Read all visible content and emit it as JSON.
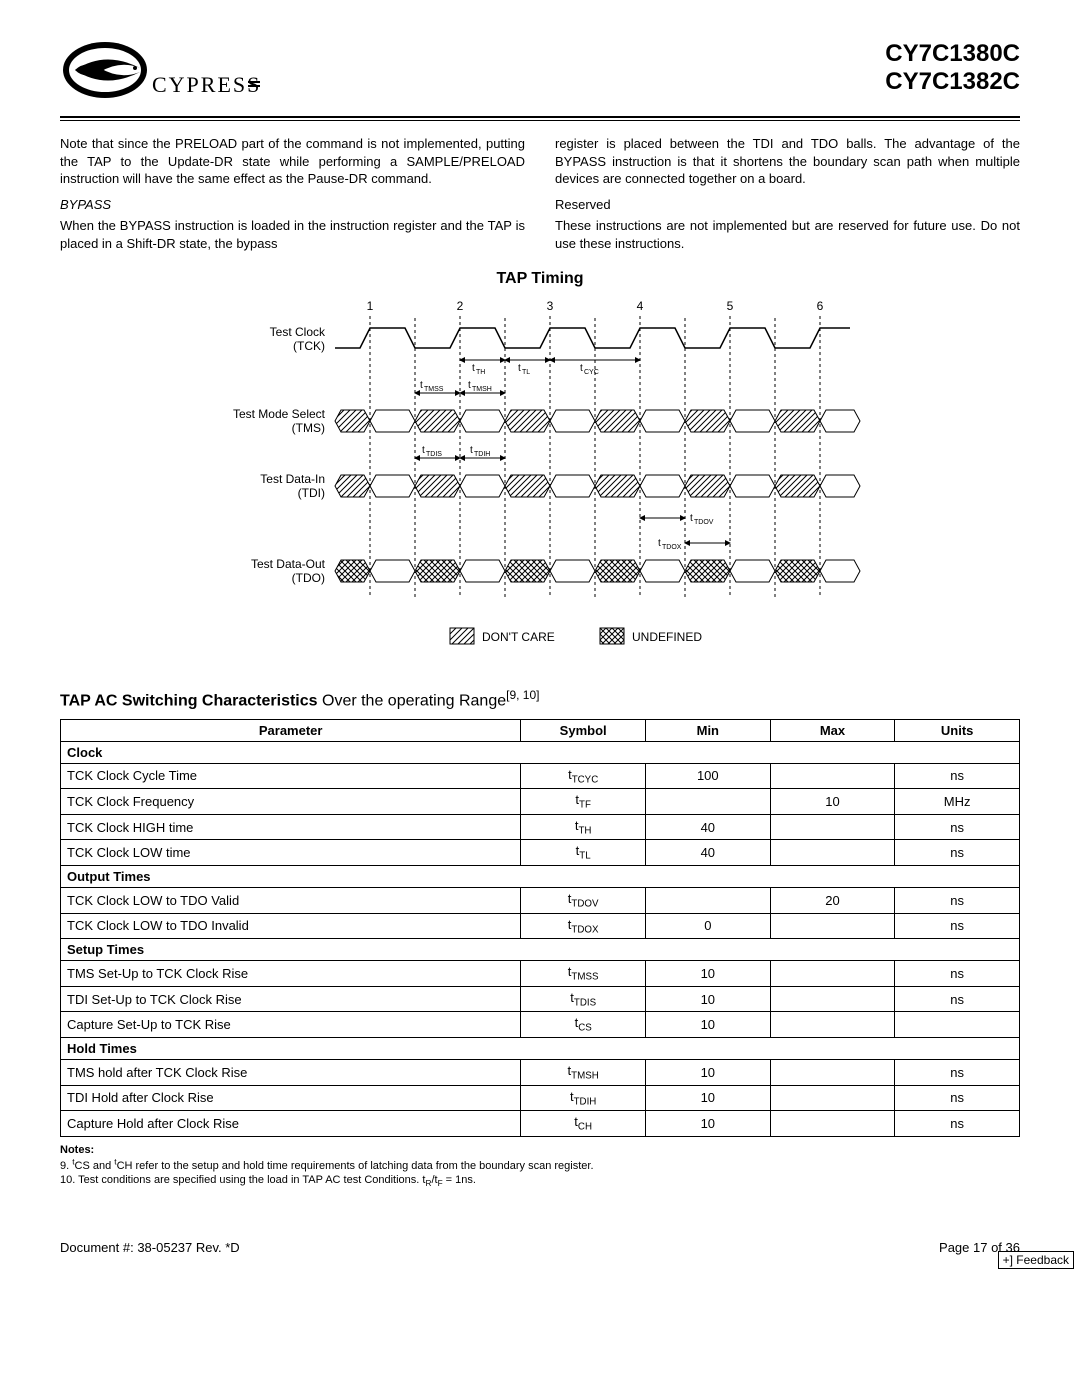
{
  "header": {
    "part1": "CY7C1380C",
    "part2": "CY7C1382C",
    "logo_text": "CYPRESS"
  },
  "body": {
    "left_p1": "Note that since the PRELOAD part of the command is not implemented, putting the TAP to the Update-DR state while performing a SAMPLE/PRELOAD instruction will have the same effect as the Pause-DR command.",
    "bypass_h": "BYPASS",
    "left_p2": "When the BYPASS instruction is loaded in the instruction register and the TAP is placed in a Shift-DR state, the bypass",
    "right_p1": "register is placed between the TDI and TDO balls. The advantage of the BYPASS instruction is that it shortens the boundary scan path when multiple devices are connected together on a board.",
    "reserved_h": "Reserved",
    "right_p2": "These instructions are not implemented but are reserved for future use. Do not use these instructions."
  },
  "timing": {
    "title": "TAP Timing",
    "signals": {
      "tck": "Test Clock\n(TCK)",
      "tms": "Test Mode Select\n(TMS)",
      "tdi": "Test Data-In\n(TDI)",
      "tdo": "Test Data-Out\n(TDO)"
    },
    "labels": {
      "th": "TH",
      "tl": "TL",
      "tcyc": "CYC",
      "tmss": "TMSS",
      "tmsh": "TMSH",
      "tdis": "TDIS",
      "tdih": "TDIH",
      "tdov": "TDOV",
      "tdox": "TDOX"
    },
    "legend": {
      "dontcare": "DON'T CARE",
      "undefined": "UNDEFINED"
    }
  },
  "char_title": {
    "bold": "TAP AC Switching Characteristics",
    "rest": " Over the operating Range",
    "refs": "[9, 10]"
  },
  "table": {
    "headers": [
      "Parameter",
      "Symbol",
      "Min",
      "Max",
      "Units"
    ],
    "rows": [
      {
        "type": "section",
        "label": "Clock"
      },
      {
        "param": "TCK Clock Cycle Time",
        "sym": "t",
        "sub": "TCYC",
        "min": "100",
        "max": "",
        "units": "ns"
      },
      {
        "param": "TCK Clock Frequency",
        "sym": "t",
        "sub": "TF",
        "min": "",
        "max": "10",
        "units": "MHz"
      },
      {
        "param": "TCK Clock HIGH time",
        "sym": "t",
        "sub": "TH",
        "min": "40",
        "max": "",
        "units": "ns"
      },
      {
        "param": "TCK Clock LOW time",
        "sym": "t",
        "sub": "TL",
        "min": "40",
        "max": "",
        "units": "ns"
      },
      {
        "type": "section",
        "label": "Output Times"
      },
      {
        "param": "TCK Clock LOW to TDO Valid",
        "sym": "t",
        "sub": "TDOV",
        "min": "",
        "max": "20",
        "units": "ns"
      },
      {
        "param": "TCK Clock LOW to TDO Invalid",
        "sym": "t",
        "sub": "TDOX",
        "min": "0",
        "max": "",
        "units": "ns"
      },
      {
        "type": "section",
        "label": "Setup Times"
      },
      {
        "param": "TMS Set-Up to TCK Clock Rise",
        "sym": "t",
        "sub": "TMSS",
        "min": "10",
        "max": "",
        "units": "ns"
      },
      {
        "param": "TDI Set-Up to TCK Clock Rise",
        "sym": "t",
        "sub": "TDIS",
        "min": "10",
        "max": "",
        "units": "ns"
      },
      {
        "param": "Capture Set-Up to TCK Rise",
        "sym": "t",
        "sub": "CS",
        "min": "10",
        "max": "",
        "units": ""
      },
      {
        "type": "section",
        "label": "Hold Times"
      },
      {
        "param": "TMS hold after TCK Clock Rise",
        "sym": "t",
        "sub": "TMSH",
        "min": "10",
        "max": "",
        "units": "ns"
      },
      {
        "param": "TDI Hold after Clock Rise",
        "sym": "t",
        "sub": "TDIH",
        "min": "10",
        "max": "",
        "units": "ns"
      },
      {
        "param": "Capture Hold after Clock Rise",
        "sym": "t",
        "sub": "CH",
        "min": "10",
        "max": "",
        "units": "ns"
      }
    ]
  },
  "notes": {
    "heading": "Notes:",
    "n9a": "9. ",
    "n9b": "CS and ",
    "n9c": "CH refer to the setup and hold time requirements of latching data from the boundary scan register.",
    "n10": "10. Test conditions are specified using the load in TAP AC test Conditions. t",
    "n10r": "R",
    "n10mid": "/t",
    "n10f": "F",
    "n10end": " = 1ns."
  },
  "footer": {
    "doc": "Document #: 38-05237 Rev. *D",
    "page": "Page 17 of 36",
    "feedback": "+] Feedback"
  },
  "style": {
    "col_widths": {
      "param": "48%",
      "sym": "13%",
      "min": "13%",
      "max": "13%",
      "units": "13%"
    }
  }
}
